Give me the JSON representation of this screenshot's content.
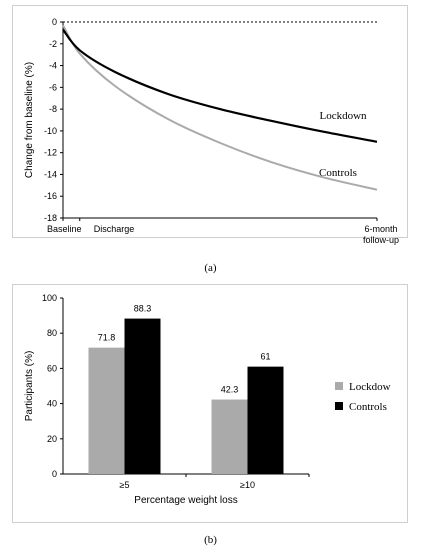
{
  "chart_data": [
    {
      "type": "line",
      "panel_label": "(a)",
      "ylabel": "Change from baseline (%)",
      "yticks": [
        "0",
        "-2",
        "-4",
        "-6",
        "-8",
        "-10",
        "-12",
        "-14",
        "-16",
        "-18"
      ],
      "ylim": [
        -18,
        0
      ],
      "xticks": [
        "Baseline",
        "Discharge",
        "6-month\nfollow-up"
      ],
      "x_positions": [
        0,
        0.32,
        6
      ],
      "reference_line": {
        "y": 0,
        "style": "dotted"
      },
      "series": [
        {
          "name": "Lockdown",
          "color": "#000000",
          "x": [
            0,
            0.32,
            1,
            2,
            3,
            4,
            5,
            6
          ],
          "y": [
            -0.7,
            -2.6,
            -4.6,
            -6.6,
            -8.0,
            -9.1,
            -10.1,
            -11.0
          ]
        },
        {
          "name": "Controls",
          "color": "#aaaaaa",
          "x": [
            0,
            0.32,
            1,
            2,
            3,
            4,
            5,
            6
          ],
          "y": [
            -0.3,
            -2.9,
            -5.9,
            -8.9,
            -11.1,
            -12.9,
            -14.3,
            -15.4
          ]
        }
      ]
    },
    {
      "type": "bar",
      "panel_label": "(b)",
      "categories": [
        "≥5",
        "≥10"
      ],
      "xlabel": "Percentage weight loss",
      "ylabel": "Participants (%)",
      "ylim": [
        0,
        100
      ],
      "yticks": [
        "0",
        "20",
        "40",
        "60",
        "80",
        "100"
      ],
      "legend_position": "right",
      "series": [
        {
          "name": "Lockdow",
          "color": "#aaaaaa",
          "values": [
            71.8,
            42.3
          ],
          "labels": [
            "71.8",
            "42.3"
          ]
        },
        {
          "name": "Controls",
          "color": "#000000",
          "values": [
            88.3,
            61
          ],
          "labels": [
            "88.3",
            "61"
          ]
        }
      ]
    }
  ]
}
